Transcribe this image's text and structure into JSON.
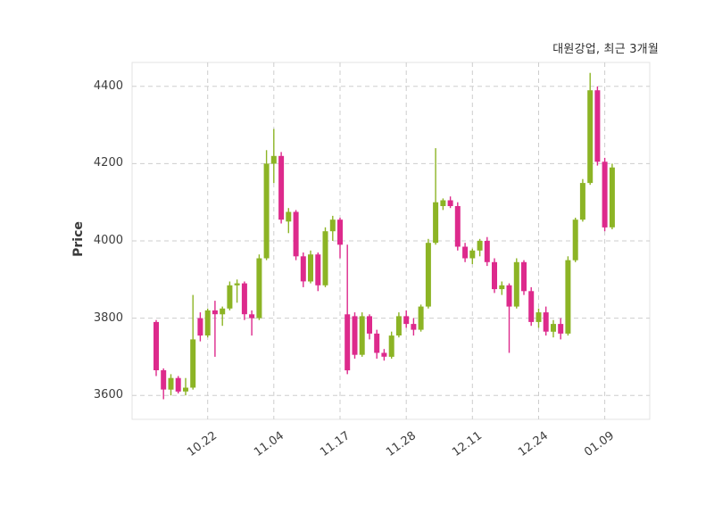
{
  "title": "대원강업, 최근 3개월",
  "chart_data": {
    "type": "candlestick",
    "title": "대원강업, 최근 3개월",
    "ylabel": "Price",
    "xlabel": "",
    "grid": true,
    "grid_style": "dashed",
    "background": "#ffffff",
    "up_color": "#8cb425",
    "down_color": "#dd2a8c",
    "ylim": [
      3538,
      4462
    ],
    "y_ticks": [
      3600,
      3800,
      4000,
      4200,
      4400
    ],
    "x_ticks": [
      {
        "label": "10.22",
        "index": 7
      },
      {
        "label": "11.04",
        "index": 16
      },
      {
        "label": "11.17",
        "index": 25
      },
      {
        "label": "11.28",
        "index": 34
      },
      {
        "label": "12.11",
        "index": 43
      },
      {
        "label": "12.24",
        "index": 52
      },
      {
        "label": "01.09",
        "index": 61
      }
    ],
    "candle_format": [
      "open",
      "high",
      "low",
      "close"
    ],
    "candles": [
      [
        3790,
        3795,
        3650,
        3665
      ],
      [
        3665,
        3670,
        3590,
        3615
      ],
      [
        3615,
        3655,
        3600,
        3645
      ],
      [
        3645,
        3650,
        3605,
        3610
      ],
      [
        3610,
        3645,
        3600,
        3620
      ],
      [
        3620,
        3860,
        3615,
        3745
      ],
      [
        3800,
        3815,
        3740,
        3755
      ],
      [
        3755,
        3825,
        3750,
        3820
      ],
      [
        3820,
        3845,
        3700,
        3810
      ],
      [
        3810,
        3830,
        3780,
        3825
      ],
      [
        3825,
        3895,
        3820,
        3885
      ],
      [
        3885,
        3900,
        3840,
        3890
      ],
      [
        3890,
        3895,
        3795,
        3810
      ],
      [
        3810,
        3820,
        3755,
        3800
      ],
      [
        3800,
        3965,
        3795,
        3955
      ],
      [
        3955,
        4235,
        3950,
        4200
      ],
      [
        4200,
        4290,
        4150,
        4220
      ],
      [
        4220,
        4230,
        4045,
        4055
      ],
      [
        4050,
        4085,
        4020,
        4075
      ],
      [
        4075,
        4080,
        3950,
        3960
      ],
      [
        3960,
        3970,
        3880,
        3895
      ],
      [
        3895,
        3975,
        3890,
        3965
      ],
      [
        3965,
        3970,
        3870,
        3885
      ],
      [
        3885,
        4035,
        3880,
        4025
      ],
      [
        4025,
        4065,
        4000,
        4055
      ],
      [
        4055,
        4060,
        3955,
        3990
      ],
      [
        3810,
        3990,
        3655,
        3665
      ],
      [
        3805,
        3815,
        3695,
        3705
      ],
      [
        3705,
        3815,
        3700,
        3805
      ],
      [
        3805,
        3810,
        3745,
        3760
      ],
      [
        3760,
        3770,
        3695,
        3710
      ],
      [
        3710,
        3720,
        3690,
        3700
      ],
      [
        3700,
        3765,
        3695,
        3755
      ],
      [
        3755,
        3815,
        3750,
        3805
      ],
      [
        3805,
        3820,
        3775,
        3785
      ],
      [
        3785,
        3800,
        3755,
        3770
      ],
      [
        3770,
        3835,
        3765,
        3830
      ],
      [
        3830,
        4005,
        3825,
        3995
      ],
      [
        3995,
        4240,
        3990,
        4100
      ],
      [
        4090,
        4110,
        4080,
        4105
      ],
      [
        4105,
        4115,
        4085,
        4090
      ],
      [
        4090,
        4100,
        3975,
        3985
      ],
      [
        3985,
        3995,
        3945,
        3955
      ],
      [
        3955,
        3980,
        3940,
        3975
      ],
      [
        3975,
        4005,
        3960,
        4000
      ],
      [
        4000,
        4010,
        3935,
        3945
      ],
      [
        3945,
        3955,
        3865,
        3875
      ],
      [
        3875,
        3895,
        3860,
        3885
      ],
      [
        3885,
        3890,
        3710,
        3830
      ],
      [
        3830,
        3955,
        3825,
        3945
      ],
      [
        3945,
        3950,
        3860,
        3870
      ],
      [
        3870,
        3880,
        3780,
        3790
      ],
      [
        3790,
        3825,
        3775,
        3815
      ],
      [
        3815,
        3830,
        3755,
        3765
      ],
      [
        3765,
        3795,
        3750,
        3785
      ],
      [
        3785,
        3800,
        3745,
        3760
      ],
      [
        3760,
        3960,
        3755,
        3950
      ],
      [
        3950,
        4060,
        3945,
        4055
      ],
      [
        4055,
        4160,
        4050,
        4150
      ],
      [
        4150,
        4435,
        4145,
        4390
      ],
      [
        4390,
        4400,
        4195,
        4205
      ],
      [
        4205,
        4215,
        4025,
        4035
      ],
      [
        4035,
        4200,
        4030,
        4190
      ]
    ]
  }
}
